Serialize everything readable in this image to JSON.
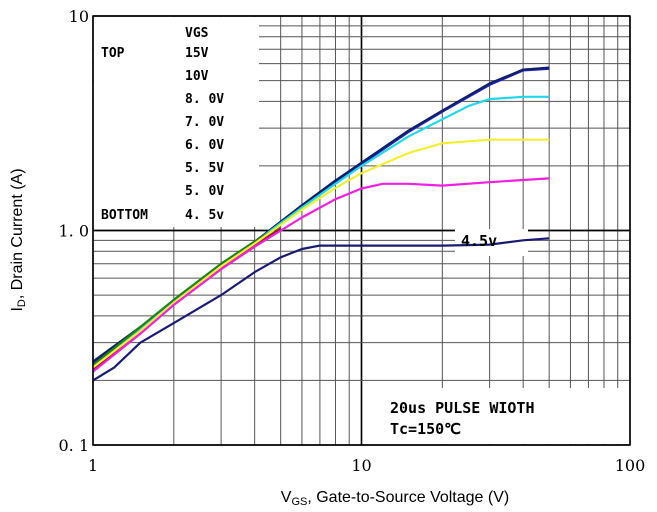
{
  "chart_data": {
    "type": "line",
    "x_scale": "log",
    "y_scale": "log",
    "xlim": [
      1,
      100
    ],
    "ylim": [
      0.1,
      10
    ],
    "xlabel_main": "V",
    "xlabel_sub": "GS",
    "xlabel_rest": ", Gate-to-Source Voltage (V)",
    "ylabel_main": "I",
    "ylabel_sub": "D",
    "ylabel_rest": ", Drain Current  (A)",
    "x_ticks": [
      {
        "value": 1,
        "label": "1"
      },
      {
        "value": 10,
        "label": "10"
      },
      {
        "value": 100,
        "label": "100"
      }
    ],
    "y_ticks": [
      {
        "value": 10,
        "label": "10"
      },
      {
        "value": 1,
        "label": "1. 0"
      },
      {
        "value": 0.1,
        "label": "0. 1"
      }
    ],
    "grid": true,
    "legend": {
      "header": "VGS",
      "top_label": "TOP",
      "bottom_label": "BOTTOM",
      "entries": [
        "15V",
        "10V",
        "8. 0V",
        "7. 0V",
        "6. 0V",
        "5. 5V",
        "5. 0V",
        "4. 5v"
      ]
    },
    "annotations": {
      "curve_label": "4.5v",
      "note_line1": "20us PULSE WIOTH",
      "note_line2": "Tc=150℃"
    },
    "series": [
      {
        "color": "#2020c8",
        "x": [
          1,
          1.5,
          2,
          3,
          4,
          6,
          8,
          10,
          15,
          20,
          30,
          40,
          50
        ],
        "y": [
          0.24,
          0.35,
          0.46,
          0.68,
          0.88,
          1.3,
          1.7,
          2.05,
          2.9,
          3.6,
          4.8,
          5.6,
          5.7
        ]
      },
      {
        "color": "#102060",
        "x": [
          1,
          1.5,
          2,
          3,
          4,
          6,
          8,
          10,
          15,
          20,
          30,
          40,
          50
        ],
        "y": [
          0.245,
          0.355,
          0.465,
          0.685,
          0.885,
          1.31,
          1.71,
          2.07,
          2.93,
          3.62,
          4.85,
          5.62,
          5.75
        ]
      },
      {
        "color": "#20d8e8",
        "x": [
          1,
          1.5,
          2,
          3,
          4,
          6,
          8,
          10,
          15,
          20,
          25,
          30,
          40,
          50
        ],
        "y": [
          0.235,
          0.35,
          0.47,
          0.69,
          0.88,
          1.28,
          1.65,
          2.0,
          2.75,
          3.3,
          3.8,
          4.1,
          4.2,
          4.2
        ]
      },
      {
        "color": "#208020",
        "x": [
          1,
          1.5,
          2,
          3,
          4,
          5
        ],
        "y": [
          0.235,
          0.355,
          0.475,
          0.7,
          0.89,
          1.05
        ]
      },
      {
        "color": "#902020",
        "x": [
          1,
          1.5,
          2,
          3,
          4,
          5
        ],
        "y": [
          0.225,
          0.34,
          0.45,
          0.67,
          0.86,
          1.02
        ]
      },
      {
        "color": "#f0f030",
        "x": [
          1,
          1.5,
          2,
          3,
          4,
          6,
          8,
          10,
          15,
          20,
          30,
          40,
          50
        ],
        "y": [
          0.23,
          0.34,
          0.46,
          0.68,
          0.87,
          1.25,
          1.58,
          1.85,
          2.3,
          2.55,
          2.65,
          2.65,
          2.65
        ]
      },
      {
        "color": "#f020e0",
        "x": [
          1,
          1.5,
          2,
          3,
          4,
          6,
          8,
          10,
          12,
          15,
          20,
          30,
          40,
          50
        ],
        "y": [
          0.22,
          0.33,
          0.45,
          0.66,
          0.84,
          1.15,
          1.4,
          1.57,
          1.65,
          1.65,
          1.62,
          1.68,
          1.72,
          1.75
        ]
      },
      {
        "color": "#1a1a70",
        "x": [
          1,
          1.2,
          1.5,
          2,
          3,
          4,
          5,
          6,
          7,
          10,
          20,
          30,
          40,
          50
        ],
        "y": [
          0.2,
          0.23,
          0.3,
          0.37,
          0.5,
          0.64,
          0.75,
          0.82,
          0.85,
          0.85,
          0.85,
          0.86,
          0.9,
          0.92
        ]
      }
    ]
  }
}
